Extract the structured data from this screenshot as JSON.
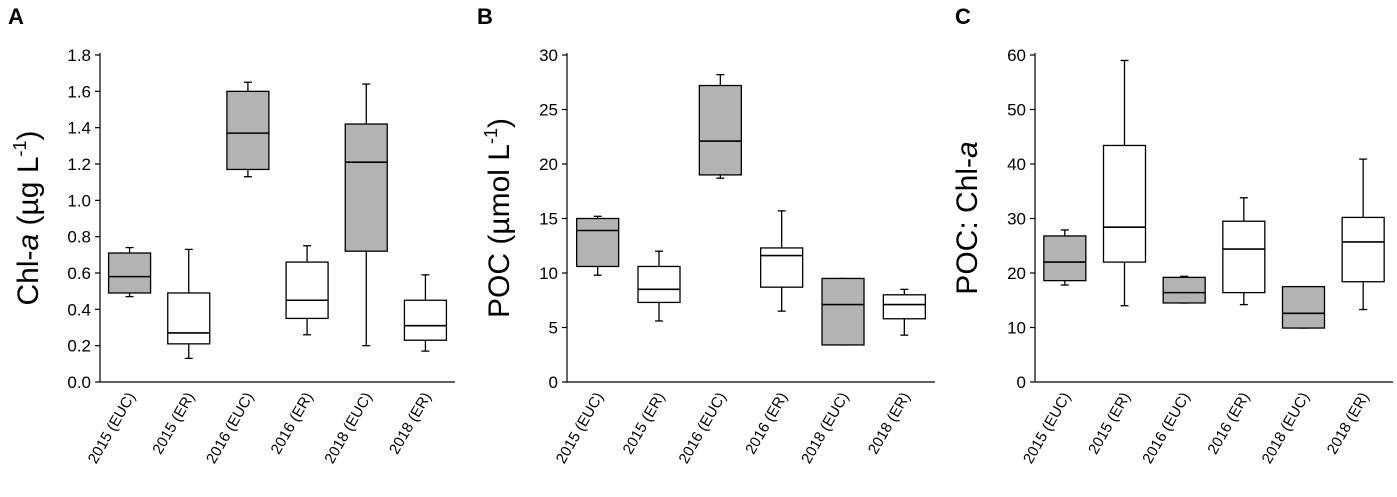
{
  "colors": {
    "filled": "#b3b3b3",
    "open": "#ffffff",
    "stroke": "#000000"
  },
  "chart_data": [
    {
      "type": "boxplot",
      "panel_label": "A",
      "ylabel_parts": {
        "pre": "Chl-",
        "italic": "a",
        "post": " (µg L",
        "sup": "-1",
        "end": ")"
      },
      "ylim": [
        0,
        1.8
      ],
      "yticks": [
        "0.0",
        "0.2",
        "0.4",
        "0.6",
        "0.8",
        "1.0",
        "1.2",
        "1.4",
        "1.6",
        "1.8"
      ],
      "categories": [
        "2015 (EUC)",
        "2015 (ER)",
        "2016 (EUC)",
        "2016 (ER)",
        "2018 (EUC)",
        "2018 (ER)"
      ],
      "boxes": [
        {
          "min": 0.47,
          "q1": 0.49,
          "median": 0.58,
          "q3": 0.71,
          "max": 0.74,
          "fill": "filled"
        },
        {
          "min": 0.13,
          "q1": 0.21,
          "median": 0.27,
          "q3": 0.49,
          "max": 0.73,
          "fill": "open"
        },
        {
          "min": 1.13,
          "q1": 1.17,
          "median": 1.37,
          "q3": 1.6,
          "max": 1.65,
          "fill": "filled"
        },
        {
          "min": 0.26,
          "q1": 0.35,
          "median": 0.45,
          "q3": 0.66,
          "max": 0.75,
          "fill": "open"
        },
        {
          "min": 0.2,
          "q1": 0.72,
          "median": 1.21,
          "q3": 1.42,
          "max": 1.64,
          "fill": "filled"
        },
        {
          "min": 0.17,
          "q1": 0.23,
          "median": 0.31,
          "q3": 0.45,
          "max": 0.59,
          "fill": "open"
        }
      ]
    },
    {
      "type": "boxplot",
      "panel_label": "B",
      "ylabel_parts": {
        "pre": "POC (µmol L",
        "sup": "-1",
        "end": ")"
      },
      "ylim": [
        0,
        30
      ],
      "yticks": [
        "0",
        "5",
        "10",
        "15",
        "20",
        "25",
        "30"
      ],
      "categories": [
        "2015 (EUC)",
        "2015 (ER)",
        "2016 (EUC)",
        "2016 (ER)",
        "2018 (EUC)",
        "2018 (ER)"
      ],
      "boxes": [
        {
          "min": 9.8,
          "q1": 10.6,
          "median": 13.9,
          "q3": 15.0,
          "max": 15.2,
          "fill": "filled"
        },
        {
          "min": 5.6,
          "q1": 7.3,
          "median": 8.5,
          "q3": 10.6,
          "max": 12.0,
          "fill": "open"
        },
        {
          "min": 18.7,
          "q1": 19.0,
          "median": 22.1,
          "q3": 27.2,
          "max": 28.2,
          "fill": "filled"
        },
        {
          "min": 6.5,
          "q1": 8.7,
          "median": 11.6,
          "q3": 12.3,
          "max": 15.7,
          "fill": "open"
        },
        {
          "min": 3.4,
          "q1": 3.4,
          "median": 7.1,
          "q3": 9.5,
          "max": 9.5,
          "fill": "filled"
        },
        {
          "min": 4.3,
          "q1": 5.8,
          "median": 7.1,
          "q3": 8.0,
          "max": 8.5,
          "fill": "open"
        }
      ]
    },
    {
      "type": "boxplot",
      "panel_label": "C",
      "ylabel_parts": {
        "pre": "POC: Chl-",
        "italic": "a"
      },
      "ylim": [
        0,
        60
      ],
      "yticks": [
        "0",
        "10",
        "20",
        "30",
        "40",
        "50",
        "60"
      ],
      "categories": [
        "2015 (EUC)",
        "2015 (ER)",
        "2016 (EUC)",
        "2016 (ER)",
        "2018 (EUC)",
        "2018 (ER)"
      ],
      "boxes": [
        {
          "min": 17.8,
          "q1": 18.6,
          "median": 22.0,
          "q3": 26.8,
          "max": 27.9,
          "fill": "filled"
        },
        {
          "min": 14.0,
          "q1": 22.0,
          "median": 28.4,
          "q3": 43.4,
          "max": 59.0,
          "fill": "open"
        },
        {
          "min": 14.5,
          "q1": 14.5,
          "median": 16.4,
          "q3": 19.2,
          "max": 19.4,
          "fill": "filled"
        },
        {
          "min": 14.2,
          "q1": 16.4,
          "median": 24.4,
          "q3": 29.5,
          "max": 33.8,
          "fill": "open"
        },
        {
          "min": 9.9,
          "q1": 9.9,
          "median": 12.6,
          "q3": 17.5,
          "max": 17.5,
          "fill": "filled"
        },
        {
          "min": 13.3,
          "q1": 18.4,
          "median": 25.7,
          "q3": 30.2,
          "max": 40.9,
          "fill": "open"
        }
      ]
    }
  ]
}
